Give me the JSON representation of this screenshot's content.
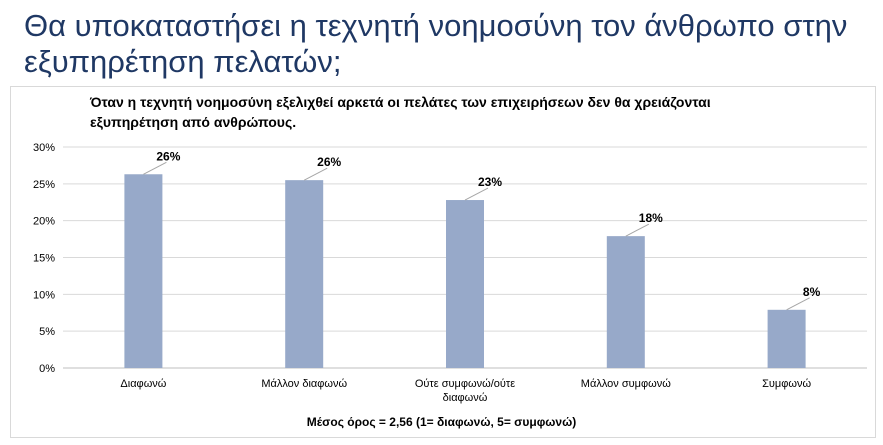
{
  "slide": {
    "title": "Θα υποκαταστήσει η τεχνητή νοημοσύνη τον άνθρωπο στην εξυπηρέτηση πελατών;"
  },
  "chart_data": {
    "type": "bar",
    "title": "Όταν η τεχνητή νοημοσύνη εξελιχθεί αρκετά οι πελάτες των επιχειρήσεων δεν θα χρειάζονται εξυπηρέτηση από ανθρώπους.",
    "categories": [
      "Διαφωνώ",
      "Μάλλον διαφωνώ",
      "Ούτε συμφωνώ/ούτε διαφωνώ",
      "Μάλλον συμφωνώ",
      "Συμφωνώ"
    ],
    "category_lines": [
      [
        "Διαφωνώ"
      ],
      [
        "Μάλλον διαφωνώ"
      ],
      [
        "Ούτε συμφωνώ/ούτε",
        "διαφωνώ"
      ],
      [
        "Μάλλον συμφωνώ"
      ],
      [
        "Συμφωνώ"
      ]
    ],
    "values": [
      26.3,
      25.5,
      22.8,
      17.9,
      7.9
    ],
    "data_labels": [
      "26%",
      "26%",
      "23%",
      "18%",
      "8%"
    ],
    "ylim": [
      0,
      30
    ],
    "y_ticks": [
      "0%",
      "5%",
      "10%",
      "15%",
      "20%",
      "25%",
      "30%"
    ],
    "y_tick_values": [
      0,
      5,
      10,
      15,
      20,
      25,
      30
    ],
    "grid": true,
    "bar_color": "#97a9c9",
    "leader_color": "#a6a6a6",
    "footnote": "Μέσος όρος = 2,56 (1= διαφωνώ, 5= συμφωνώ)"
  }
}
